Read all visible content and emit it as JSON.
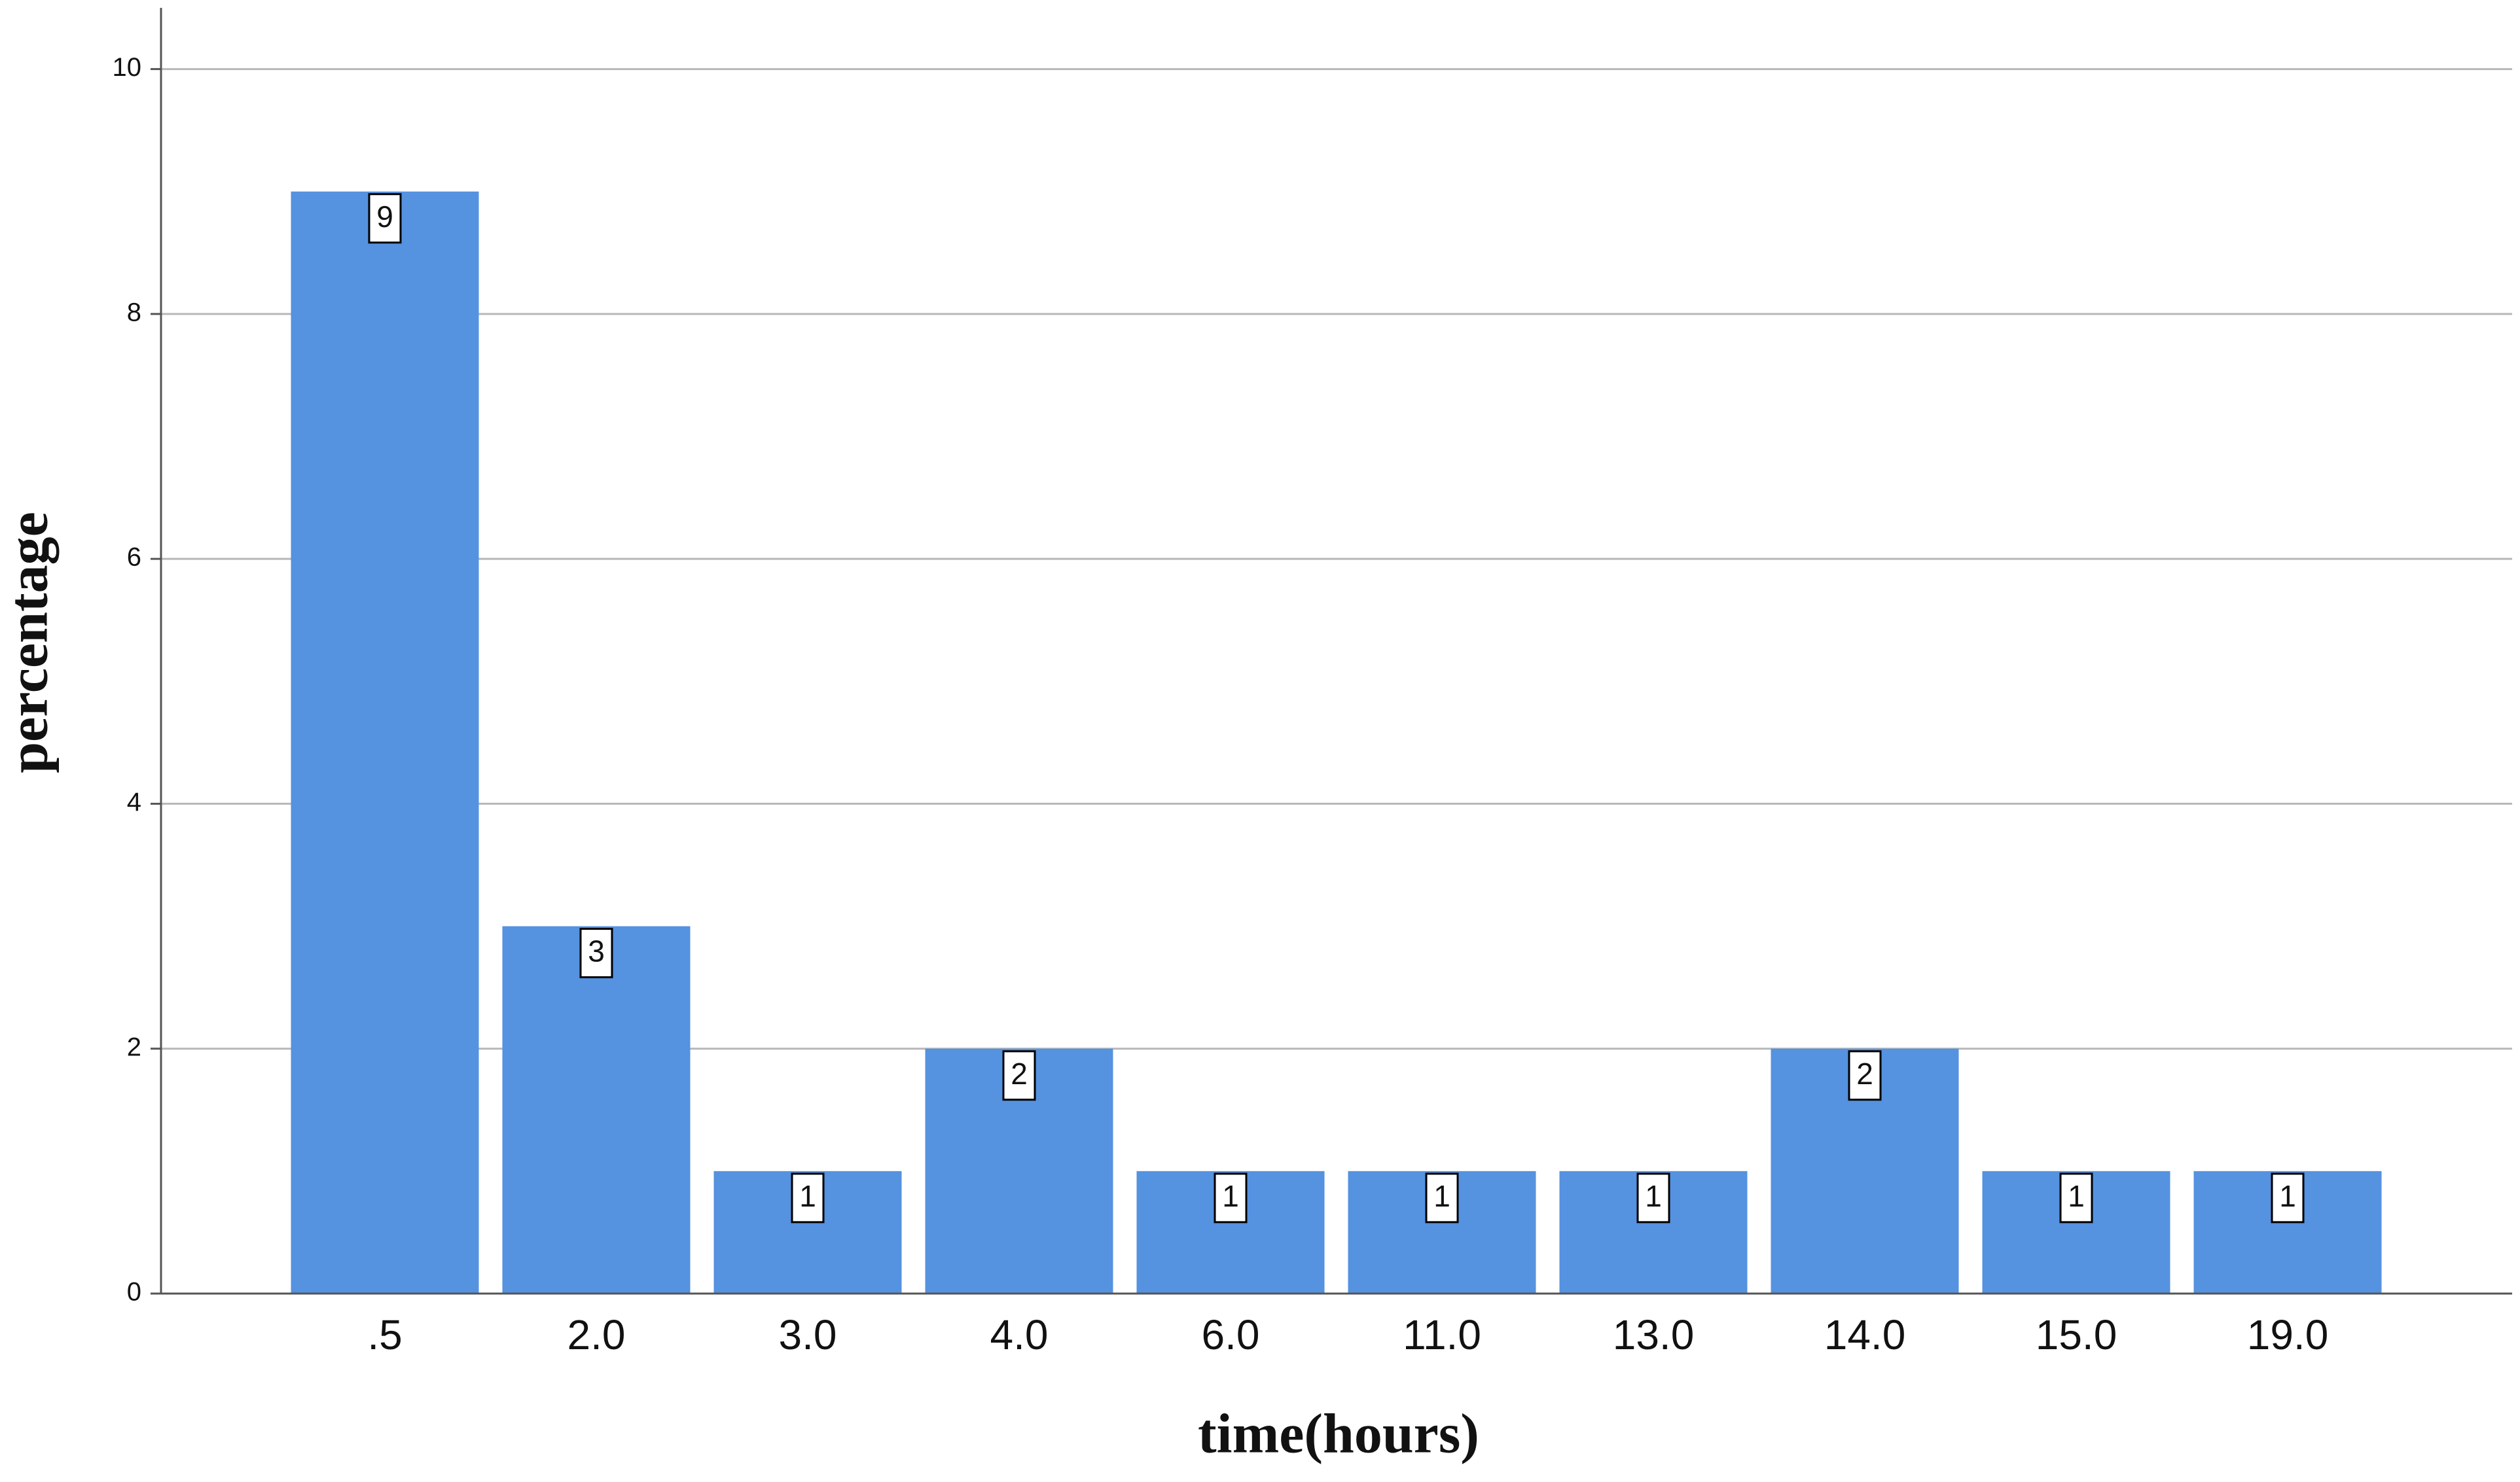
{
  "chart_data": {
    "type": "bar",
    "x_label": "time(hours)",
    "y_label": "percentage",
    "categories": [
      ".5",
      "2.0",
      "3.0",
      "4.0",
      "6.0",
      "11.0",
      "13.0",
      "14.0",
      "15.0",
      "19.0"
    ],
    "values": [
      9,
      3,
      1,
      2,
      1,
      1,
      1,
      2,
      1,
      1
    ],
    "color": "#5592e0",
    "ylim": [
      0,
      10.5
    ],
    "yticks": [
      0,
      2,
      4,
      6,
      8,
      10
    ],
    "grid": true
  }
}
